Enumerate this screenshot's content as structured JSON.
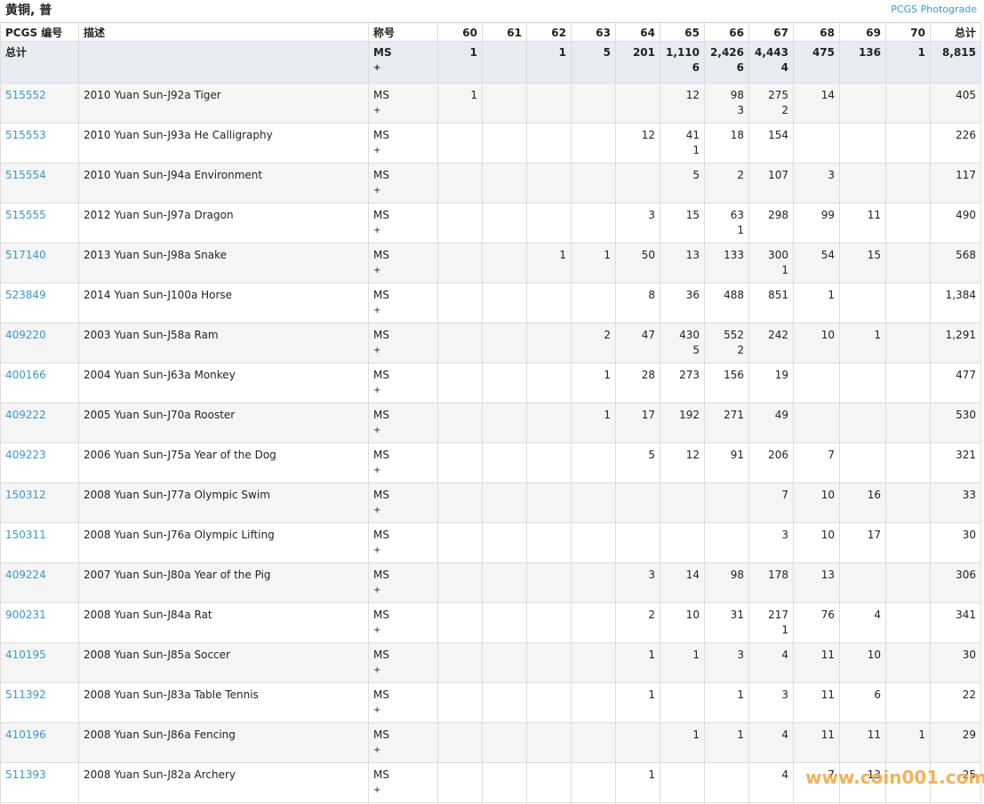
{
  "header": {
    "title": "黄铜, 普",
    "link": "PCGS Photograde"
  },
  "table": {
    "columns": [
      "PCGS 编号",
      "描述",
      "称号",
      "60",
      "61",
      "62",
      "63",
      "64",
      "65",
      "66",
      "67",
      "68",
      "69",
      "70",
      "总计"
    ],
    "summary": {
      "label": "总计",
      "grade": [
        "MS",
        "+"
      ],
      "grades": [
        "1",
        null,
        "1",
        "5",
        "201",
        [
          "1,110",
          "6"
        ],
        [
          "2,426",
          "6"
        ],
        [
          "4,443",
          "4"
        ],
        "475",
        "136",
        "1"
      ],
      "total": "8,815"
    },
    "rows": [
      {
        "id": "515552",
        "description": "2010 Yuan Sun-J92a Tiger",
        "grade": [
          "MS",
          "+"
        ],
        "grades": [
          "1",
          null,
          null,
          null,
          null,
          "12",
          [
            "98",
            "3"
          ],
          [
            "275",
            "2"
          ],
          "14",
          null,
          null
        ],
        "total": "405"
      },
      {
        "id": "515553",
        "description": "2010 Yuan Sun-J93a He Calligraphy",
        "grade": [
          "MS",
          "+"
        ],
        "grades": [
          null,
          null,
          null,
          null,
          "12",
          [
            "41",
            "1"
          ],
          "18",
          "154",
          null,
          null,
          null
        ],
        "total": "226"
      },
      {
        "id": "515554",
        "description": "2010 Yuan Sun-J94a Environment",
        "grade": [
          "MS",
          "+"
        ],
        "grades": [
          null,
          null,
          null,
          null,
          null,
          "5",
          "2",
          "107",
          "3",
          null,
          null
        ],
        "total": "117"
      },
      {
        "id": "515555",
        "description": "2012 Yuan Sun-J97a Dragon",
        "grade": [
          "MS",
          "+"
        ],
        "grades": [
          null,
          null,
          null,
          null,
          "3",
          "15",
          [
            "63",
            "1"
          ],
          "298",
          "99",
          "11",
          null
        ],
        "total": "490"
      },
      {
        "id": "517140",
        "description": "2013 Yuan Sun-J98a Snake",
        "grade": [
          "MS",
          "+"
        ],
        "grades": [
          null,
          null,
          "1",
          "1",
          "50",
          "13",
          "133",
          [
            "300",
            "1"
          ],
          "54",
          "15",
          null
        ],
        "total": "568"
      },
      {
        "id": "523849",
        "description": "2014 Yuan Sun-J100a Horse",
        "grade": [
          "MS",
          "+"
        ],
        "grades": [
          null,
          null,
          null,
          null,
          "8",
          "36",
          "488",
          "851",
          "1",
          null,
          null
        ],
        "total": "1,384"
      },
      {
        "id": "409220",
        "description": "2003 Yuan Sun-J58a Ram",
        "grade": [
          "MS",
          "+"
        ],
        "grades": [
          null,
          null,
          null,
          "2",
          "47",
          [
            "430",
            "5"
          ],
          [
            "552",
            "2"
          ],
          "242",
          "10",
          "1",
          null
        ],
        "total": "1,291"
      },
      {
        "id": "400166",
        "description": "2004 Yuan Sun-J63a Monkey",
        "grade": [
          "MS",
          "+"
        ],
        "grades": [
          null,
          null,
          null,
          "1",
          "28",
          "273",
          "156",
          "19",
          null,
          null,
          null
        ],
        "total": "477"
      },
      {
        "id": "409222",
        "description": "2005 Yuan Sun-J70a Rooster",
        "grade": [
          "MS",
          "+"
        ],
        "grades": [
          null,
          null,
          null,
          "1",
          "17",
          "192",
          "271",
          "49",
          null,
          null,
          null
        ],
        "total": "530"
      },
      {
        "id": "409223",
        "description": "2006 Yuan Sun-J75a Year of the Dog",
        "grade": [
          "MS",
          "+"
        ],
        "grades": [
          null,
          null,
          null,
          null,
          "5",
          "12",
          "91",
          "206",
          "7",
          null,
          null
        ],
        "total": "321"
      },
      {
        "id": "150312",
        "description": "2008 Yuan Sun-J77a Olympic Swim",
        "grade": [
          "MS",
          "+"
        ],
        "grades": [
          null,
          null,
          null,
          null,
          null,
          null,
          null,
          "7",
          "10",
          "16",
          null
        ],
        "total": "33"
      },
      {
        "id": "150311",
        "description": "2008 Yuan Sun-J76a Olympic Lifting",
        "grade": [
          "MS",
          "+"
        ],
        "grades": [
          null,
          null,
          null,
          null,
          null,
          null,
          null,
          "3",
          "10",
          "17",
          null
        ],
        "total": "30"
      },
      {
        "id": "409224",
        "description": "2007 Yuan Sun-J80a Year of the Pig",
        "grade": [
          "MS",
          "+"
        ],
        "grades": [
          null,
          null,
          null,
          null,
          "3",
          "14",
          "98",
          "178",
          "13",
          null,
          null
        ],
        "total": "306"
      },
      {
        "id": "900231",
        "description": "2008 Yuan Sun-J84a Rat",
        "grade": [
          "MS",
          "+"
        ],
        "grades": [
          null,
          null,
          null,
          null,
          "2",
          "10",
          "31",
          [
            "217",
            "1"
          ],
          "76",
          "4",
          null
        ],
        "total": "341"
      },
      {
        "id": "410195",
        "description": "2008 Yuan Sun-J85a Soccer",
        "grade": [
          "MS",
          "+"
        ],
        "grades": [
          null,
          null,
          null,
          null,
          "1",
          "1",
          "3",
          "4",
          "11",
          "10",
          null
        ],
        "total": "30"
      },
      {
        "id": "511392",
        "description": "2008 Yuan Sun-J83a Table Tennis",
        "grade": [
          "MS",
          "+"
        ],
        "grades": [
          null,
          null,
          null,
          null,
          "1",
          null,
          "1",
          "3",
          "11",
          "6",
          null
        ],
        "total": "22"
      },
      {
        "id": "410196",
        "description": "2008 Yuan Sun-J86a Fencing",
        "grade": [
          "MS",
          "+"
        ],
        "grades": [
          null,
          null,
          null,
          null,
          null,
          "1",
          "1",
          "4",
          "11",
          "11",
          "1"
        ],
        "total": "29"
      },
      {
        "id": "511393",
        "description": "2008 Yuan Sun-J82a Archery",
        "grade": [
          "MS",
          "+"
        ],
        "grades": [
          null,
          null,
          null,
          null,
          "1",
          null,
          null,
          "4",
          "7",
          "13",
          null
        ],
        "total": "25"
      }
    ]
  },
  "watermark": "www.coin001.com"
}
